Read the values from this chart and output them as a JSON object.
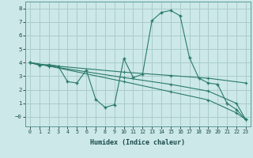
{
  "xlabel": "Humidex (Indice chaleur)",
  "bg_color": "#cce8e8",
  "grid_color": "#aacccc",
  "line_color": "#2a7a6a",
  "xlim": [
    -0.5,
    23.5
  ],
  "ylim": [
    -0.7,
    8.5
  ],
  "xticks": [
    0,
    1,
    2,
    3,
    4,
    5,
    6,
    7,
    8,
    9,
    10,
    11,
    12,
    13,
    14,
    15,
    16,
    17,
    18,
    19,
    20,
    21,
    22,
    23
  ],
  "yticks": [
    0,
    1,
    2,
    3,
    4,
    5,
    6,
    7,
    8
  ],
  "ytick_labels": [
    "−0",
    "1",
    "2",
    "3",
    "4",
    "5",
    "6",
    "7",
    "8"
  ],
  "line1_x": [
    0,
    1,
    2,
    3,
    4,
    5,
    6,
    7,
    8,
    9,
    10,
    11,
    12,
    13,
    14,
    15,
    16,
    17,
    18,
    19,
    20,
    21,
    22,
    23
  ],
  "line1_y": [
    4.0,
    3.8,
    3.85,
    3.75,
    2.6,
    2.5,
    3.45,
    1.3,
    0.7,
    0.9,
    4.3,
    2.9,
    3.15,
    7.1,
    7.7,
    7.85,
    7.45,
    4.35,
    2.85,
    2.5,
    2.4,
    1.0,
    0.55,
    -0.2
  ],
  "line2_x": [
    0,
    2,
    10,
    15,
    19,
    23
  ],
  "line2_y": [
    4.0,
    3.8,
    3.3,
    3.05,
    2.85,
    2.5
  ],
  "line3_x": [
    0,
    2,
    10,
    15,
    19,
    22,
    23
  ],
  "line3_y": [
    4.0,
    3.75,
    2.9,
    2.4,
    1.9,
    1.0,
    -0.2
  ],
  "line4_x": [
    0,
    2,
    10,
    15,
    19,
    22,
    23
  ],
  "line4_y": [
    4.0,
    3.75,
    2.6,
    1.85,
    1.25,
    0.3,
    -0.2
  ]
}
